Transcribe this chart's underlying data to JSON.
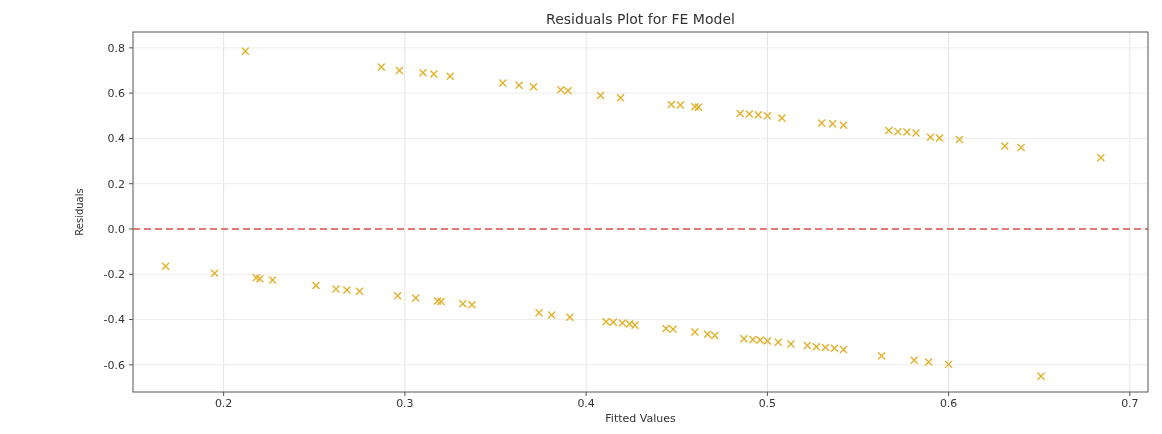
{
  "chart_data": {
    "type": "scatter",
    "title": "Residuals Plot for FE Model",
    "xlabel": "Fitted Values",
    "ylabel": "Residuals",
    "xlim": [
      0.15,
      0.71
    ],
    "ylim": [
      -0.72,
      0.87
    ],
    "xticks": [
      0.2,
      0.3,
      0.4,
      0.5,
      0.6,
      0.7
    ],
    "yticks": [
      -0.6,
      -0.4,
      -0.2,
      {
        "value": 0,
        "label": "0.0"
      },
      0.2,
      0.4,
      0.6,
      0.8
    ],
    "grid": true,
    "marker": "cross",
    "ref_lines": [
      {
        "axis": "y",
        "value": 0,
        "color": "#d9534f",
        "line_style": "dashed"
      }
    ],
    "series": [
      {
        "color": "#e3b02a",
        "x": [
          0.212,
          0.287,
          0.297,
          0.31,
          0.316,
          0.325,
          0.354,
          0.363,
          0.371,
          0.386,
          0.39,
          0.408,
          0.419,
          0.447,
          0.452,
          0.46,
          0.462,
          0.485,
          0.49,
          0.495,
          0.5,
          0.508,
          0.53,
          0.536,
          0.542,
          0.567,
          0.572,
          0.577,
          0.582,
          0.59,
          0.595,
          0.606,
          0.631,
          0.64,
          0.684,
          0.168,
          0.195,
          0.218,
          0.22,
          0.227,
          0.251,
          0.262,
          0.268,
          0.275,
          0.296,
          0.306,
          0.318,
          0.32,
          0.332,
          0.337,
          0.374,
          0.381,
          0.391,
          0.411,
          0.415,
          0.42,
          0.424,
          0.427,
          0.444,
          0.448,
          0.46,
          0.467,
          0.471,
          0.487,
          0.492,
          0.496,
          0.5,
          0.506,
          0.513,
          0.522,
          0.527,
          0.532,
          0.537,
          0.542,
          0.563,
          0.581,
          0.589,
          0.6,
          0.651
        ],
        "values": [
          0.785,
          0.715,
          0.7,
          0.69,
          0.685,
          0.675,
          0.645,
          0.635,
          0.628,
          0.615,
          0.61,
          0.59,
          0.58,
          0.55,
          0.548,
          0.54,
          0.538,
          0.51,
          0.508,
          0.505,
          0.5,
          0.49,
          0.468,
          0.465,
          0.458,
          0.435,
          0.43,
          0.428,
          0.424,
          0.405,
          0.402,
          0.395,
          0.367,
          0.36,
          0.315,
          -0.165,
          -0.195,
          -0.215,
          -0.22,
          -0.225,
          -0.25,
          -0.265,
          -0.27,
          -0.275,
          -0.295,
          -0.305,
          -0.318,
          -0.32,
          -0.33,
          -0.335,
          -0.37,
          -0.38,
          -0.39,
          -0.41,
          -0.412,
          -0.415,
          -0.42,
          -0.425,
          -0.44,
          -0.443,
          -0.455,
          -0.465,
          -0.47,
          -0.485,
          -0.488,
          -0.49,
          -0.495,
          -0.5,
          -0.508,
          -0.515,
          -0.52,
          -0.523,
          -0.527,
          -0.532,
          -0.56,
          -0.58,
          -0.588,
          -0.598,
          -0.65
        ]
      }
    ]
  }
}
